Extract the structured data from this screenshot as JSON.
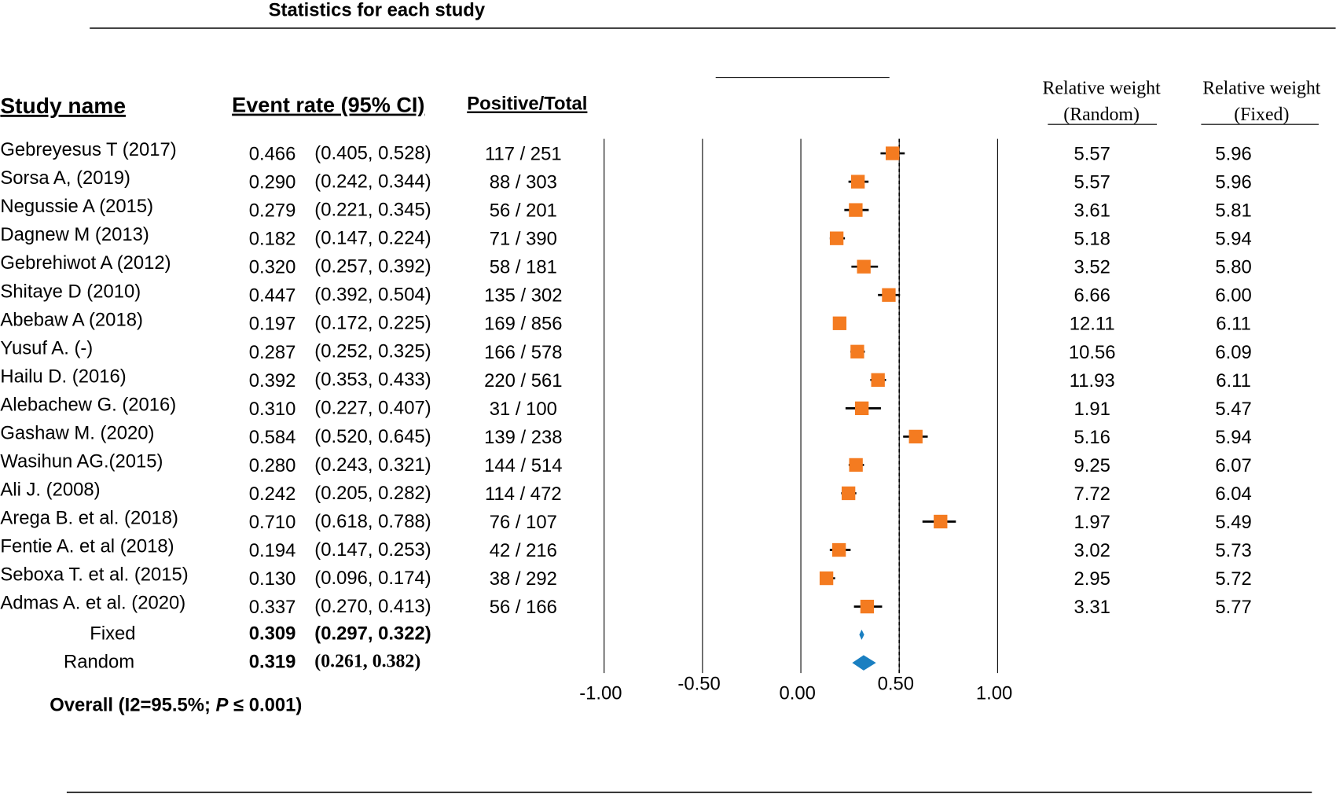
{
  "chart_data": {
    "type": "forest",
    "title": "Statistics for each study",
    "headers": {
      "study": "Study name",
      "rate": "Event rate (95% CI)",
      "count": "Positive/Total",
      "weight_random": [
        "Relative weight",
        "(Random)"
      ],
      "weight_fixed": [
        "Relative weight",
        "(Fixed)"
      ]
    },
    "studies": {
      "names": [
        "Gebreyesus T (2017)",
        "Sorsa A, (2019)",
        "Negussie A (2015)",
        "Dagnew M (2013)",
        "Gebrehiwot A (2012)",
        "Shitaye D (2010)",
        "Abebaw A (2018)",
        "Yusuf A. (-)",
        "Hailu D. (2016)",
        "Alebachew G. (2016)",
        "Gashaw M. (2020)",
        "Wasihun AG.(2015)",
        "Ali J. (2008)",
        "Arega B. et al. (2018)",
        "Fentie A. et al (2018)",
        "Seboxa T. et al. (2015)",
        "Admas A. et al. (2020)"
      ],
      "values": [
        0.466,
        0.29,
        0.279,
        0.182,
        0.32,
        0.447,
        0.197,
        0.287,
        0.392,
        0.31,
        0.584,
        0.28,
        0.242,
        0.71,
        0.194,
        0.13,
        0.337
      ],
      "value_labels": [
        "0.466",
        "0.290",
        "0.279",
        "0.182",
        "0.320",
        "0.447",
        "0.197",
        "0.287",
        "0.392",
        "0.310",
        "0.584",
        "0.280",
        "0.242",
        "0.710",
        "0.194",
        "0.130",
        "0.337"
      ],
      "ci_lower": [
        0.405,
        0.242,
        0.221,
        0.147,
        0.257,
        0.392,
        0.172,
        0.252,
        0.353,
        0.227,
        0.52,
        0.243,
        0.205,
        0.618,
        0.147,
        0.096,
        0.27
      ],
      "ci_upper": [
        0.528,
        0.344,
        0.345,
        0.224,
        0.392,
        0.504,
        0.225,
        0.325,
        0.433,
        0.407,
        0.645,
        0.321,
        0.282,
        0.788,
        0.253,
        0.174,
        0.413
      ],
      "ci_labels": [
        "(0.405, 0.528)",
        "(0.242, 0.344)",
        "(0.221, 0.345)",
        "(0.147, 0.224)",
        "(0.257, 0.392)",
        "(0.392, 0.504)",
        "(0.172, 0.225)",
        "(0.252, 0.325)",
        "(0.353, 0.433)",
        "(0.227, 0.407)",
        "(0.520, 0.645)",
        "(0.243, 0.321)",
        "(0.205, 0.282)",
        "(0.618, 0.788)",
        "(0.147, 0.253)",
        "(0.096, 0.174)",
        "(0.270, 0.413)"
      ],
      "counts": [
        "117 / 251",
        "88 / 303",
        "56 / 201",
        "71 / 390",
        "58 / 181",
        "135 / 302",
        "169 / 856",
        "166 / 578",
        "220 / 561",
        "31 / 100",
        "139 / 238",
        "144 / 514",
        "114 / 472",
        "76 / 107",
        "42 / 216",
        "38 / 292",
        "56 / 166"
      ],
      "weight_random": [
        "5.57",
        "5.57",
        "3.61",
        "5.18",
        "3.52",
        "6.66",
        "12.11",
        "10.56",
        "11.93",
        "1.91",
        "5.16",
        "9.25",
        "7.72",
        "1.97",
        "3.02",
        "2.95",
        "3.31"
      ],
      "weight_fixed": [
        "5.96",
        "5.96",
        "5.81",
        "5.94",
        "5.80",
        "6.00",
        "6.11",
        "6.09",
        "6.11",
        "5.47",
        "5.94",
        "6.07",
        "6.04",
        "5.49",
        "5.73",
        "5.72",
        "5.77"
      ]
    },
    "pooled": {
      "names": [
        "Fixed",
        "Random"
      ],
      "values": [
        0.309,
        0.319
      ],
      "value_labels": [
        "0.309",
        "0.319"
      ],
      "ci_lower": [
        0.297,
        0.261
      ],
      "ci_upper": [
        0.322,
        0.382
      ],
      "ci_labels": [
        "(0.297, 0.322)",
        "(0.261, 0.382)"
      ]
    },
    "overall": [
      "Overall (I2=95.5%; ",
      "P",
      " ≤ 0.001)"
    ],
    "xlim": [
      -1,
      1
    ],
    "xticks": [
      {
        "value": -1,
        "label": "-1.00"
      },
      {
        "value": -0.5,
        "label": "-0.50"
      },
      {
        "value": 0,
        "label": "0.00"
      },
      {
        "value": 0.5,
        "label": "0.50"
      },
      {
        "value": 1,
        "label": "1.00"
      }
    ],
    "reference_line": 0.5,
    "colors": {
      "study": "#f47b20",
      "pooled": "#1a7fc1"
    }
  }
}
